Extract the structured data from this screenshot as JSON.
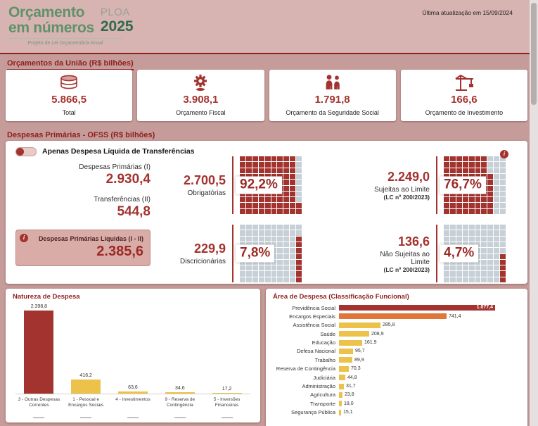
{
  "colors": {
    "page_bg": "#c59c99",
    "header_bg": "#d7b4b1",
    "accent_dark_red": "#a3332f",
    "section_title_red": "#8f1f1f",
    "logo_green": "#60926a",
    "logo_year_green": "#2e6b50",
    "waffle_filled": "#a3332f",
    "waffle_empty": "#c7d0d6",
    "bar_yellow": "#ecc24b",
    "bar_orange": "#e0763a",
    "highlight_box_bg": "#d9aca8"
  },
  "icons": {
    "info": "i"
  },
  "header": {
    "logo_title_line1": "Orçamento",
    "logo_title_line2": "em números",
    "logo_ploa": "PLOA",
    "logo_year": "2025",
    "logo_subtitle": "Projeto de Lei Orçamentária Anual",
    "last_update": "Última atualização em 15/09/2024"
  },
  "budgets": {
    "section_title": "Orçamentos da União (R$ bilhões)",
    "cards": [
      {
        "icon": "coins-icon",
        "value": "5.866,5",
        "label": "Total"
      },
      {
        "icon": "gear-coin-icon",
        "value": "3.908,1",
        "label": "Orçamento Fiscal"
      },
      {
        "icon": "family-icon",
        "value": "1.791,8",
        "label": "Orçamento da Seguridade Social"
      },
      {
        "icon": "crane-icon",
        "value": "166,6",
        "label": "Orçamento de Investimento"
      }
    ]
  },
  "despesas": {
    "section_title": "Despesas Primárias - OFSS (R$ bilhões)",
    "toggle_label": "Apenas Despesa Líquida de Transferências",
    "primarias": {
      "label": "Despesas Primárias (I)",
      "value": "2.930,4"
    },
    "transferencias": {
      "label": "Transferências (II)",
      "value": "544,8"
    },
    "liquidas": {
      "label": "Despesas Primárias Líquidas (I - II)",
      "value": "2.385,6"
    },
    "blocks": [
      {
        "value": "2.700,5",
        "label": "Obrigatórias",
        "sublabel": "",
        "pct_label": "92,2%",
        "pct": 92.2,
        "fill_from": "left"
      },
      {
        "value": "229,9",
        "label": "Discricionárias",
        "sublabel": "",
        "pct_label": "7,8%",
        "pct": 7.8,
        "fill_from": "right"
      },
      {
        "value": "2.249,0",
        "label": "Sujeitas ao Limite",
        "sublabel": "(LC nº 200/2023)",
        "pct_label": "76,7%",
        "pct": 76.7,
        "fill_from": "left"
      },
      {
        "value": "136,6",
        "label": "Não Sujeitas ao Limite",
        "sublabel": "(LC nº 200/2023)",
        "pct_label": "4,7%",
        "pct": 4.7,
        "fill_from": "right"
      }
    ]
  },
  "chart_data": [
    {
      "type": "bar",
      "title": "Natureza de Despesa",
      "categories": [
        "3 - Outras Despesas Correntes",
        "1 - Pessoal e Encargos Sociais",
        "4 - Investimentos",
        "9 - Reserva de Contingência",
        "5 - Inversões Financeiras"
      ],
      "values": [
        2398.8,
        416.2,
        63.6,
        34.6,
        17.2
      ],
      "value_labels": [
        "2.398,8",
        "416,2",
        "63,6",
        "34,6",
        "17,2"
      ],
      "bar_colors": [
        "#a3332f",
        "#ecc24b",
        "#ecc24b",
        "#ecc24b",
        "#ecc24b"
      ],
      "xlabel": "",
      "ylabel": "",
      "ylim": [
        0,
        2398.8
      ],
      "grid": false,
      "legend": false
    },
    {
      "type": "bar",
      "orientation": "horizontal",
      "title": "Área de Despesa (Classificação Funcional)",
      "categories": [
        "Previdência Social",
        "Encargos Especiais",
        "Assistência Social",
        "Saúde",
        "Educação",
        "Defesa Nacional",
        "Trabalho",
        "Reserva de Contingência",
        "Judiciária",
        "Administração",
        "Agricultura",
        "Transporte",
        "Segurança Pública"
      ],
      "values": [
        1077.4,
        741.4,
        285.8,
        208.9,
        161.9,
        95.7,
        89.9,
        70.3,
        44.8,
        31.7,
        23.8,
        18.0,
        15.1
      ],
      "value_labels": [
        "1.077,4",
        "741,4",
        "285,8",
        "208,9",
        "161,9",
        "95,7",
        "89,9",
        "70,3",
        "44,8",
        "31,7",
        "23,8",
        "18,0",
        "15,1"
      ],
      "bar_colors": [
        "#a3332f",
        "#e0763a",
        "#ecc24b",
        "#ecc24b",
        "#ecc24b",
        "#ecc24b",
        "#ecc24b",
        "#ecc24b",
        "#ecc24b",
        "#ecc24b",
        "#ecc24b",
        "#ecc24b",
        "#ecc24b"
      ],
      "xlabel": "",
      "ylabel": "",
      "xlim": [
        0,
        1077.4
      ],
      "grid": false,
      "legend": false
    }
  ]
}
